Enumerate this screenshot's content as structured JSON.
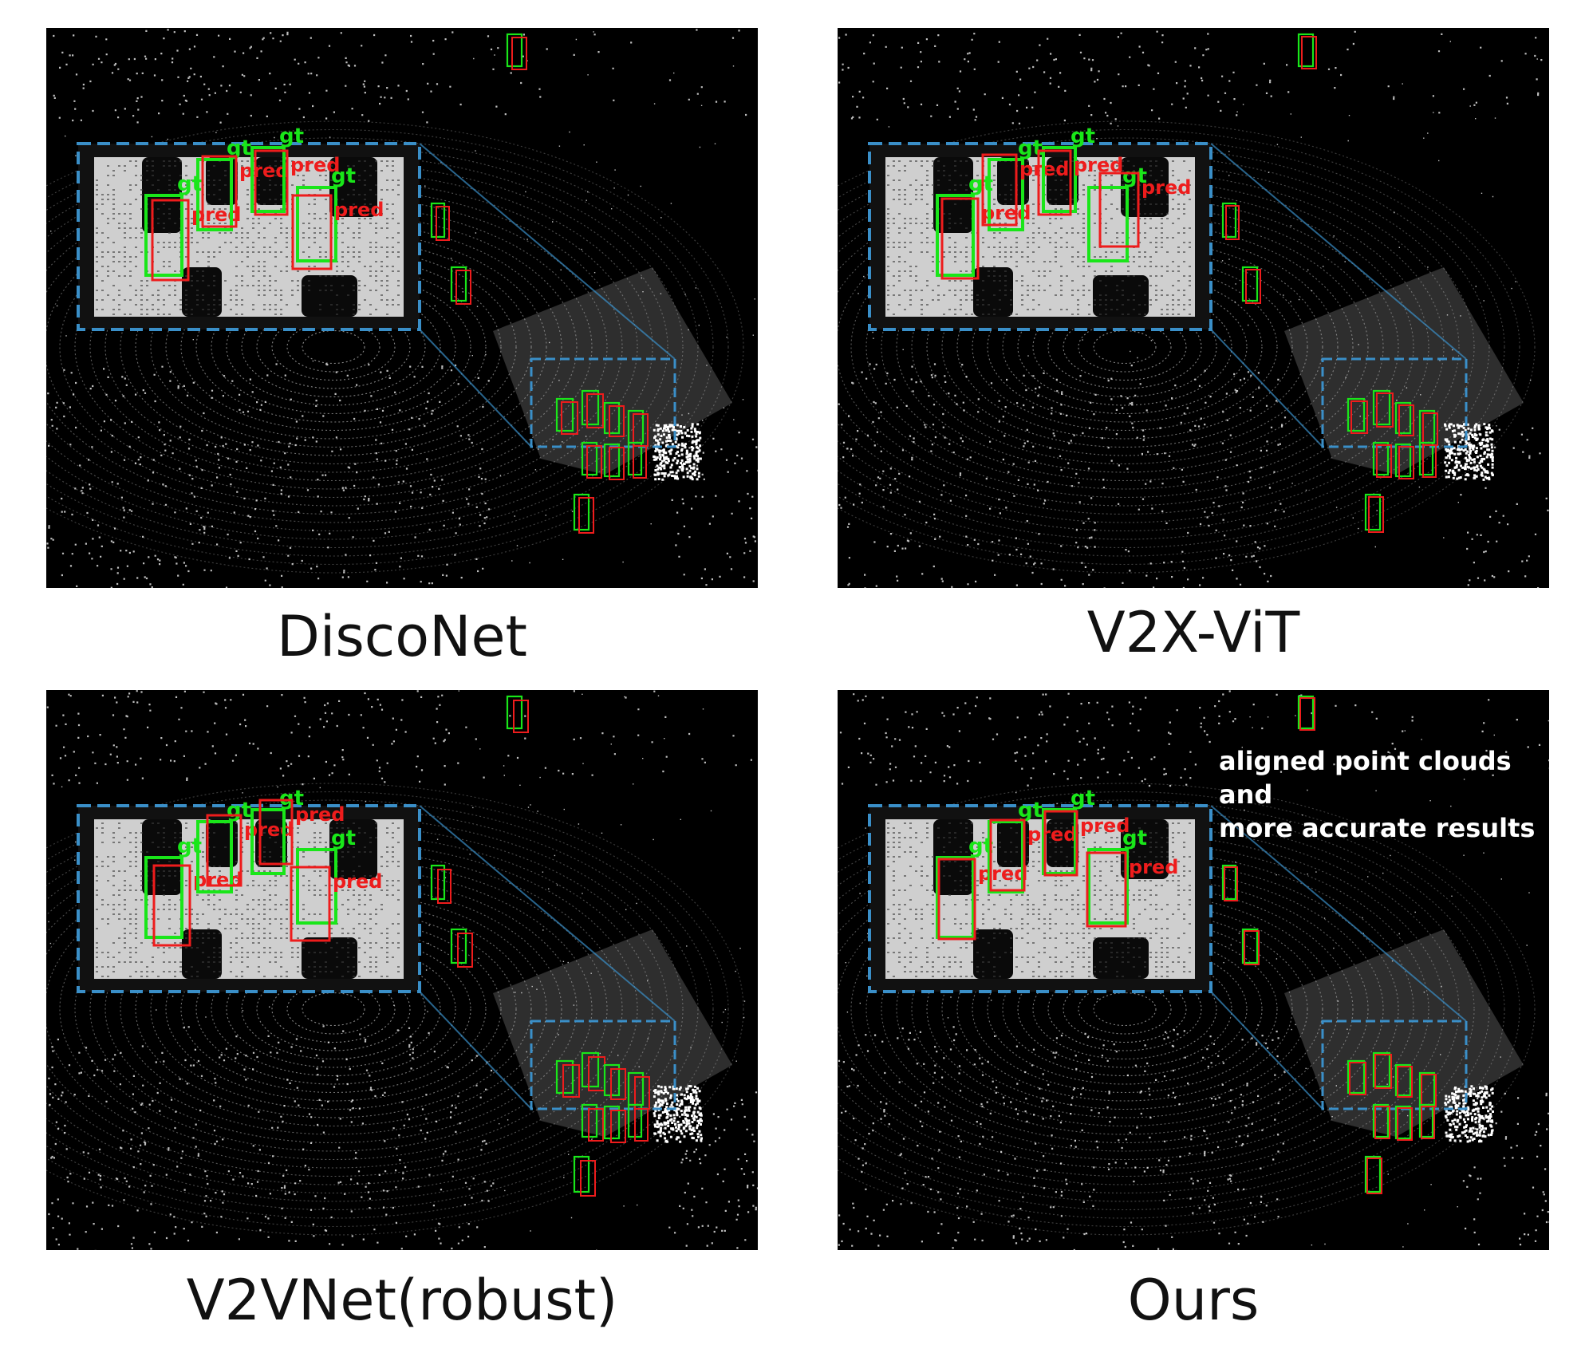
{
  "figure": {
    "panels": [
      {
        "id": "disconet",
        "caption": "DiscoNet",
        "note": ""
      },
      {
        "id": "v2x-vit",
        "caption": "V2X-ViT",
        "note": ""
      },
      {
        "id": "v2vnet",
        "caption": "V2VNet(robust)",
        "note": ""
      },
      {
        "id": "ours",
        "caption": "Ours",
        "note": "aligned point clouds and\nmore accurate results"
      }
    ],
    "box_labels": {
      "ground_truth": "gt",
      "prediction": "pred"
    },
    "colors": {
      "ground_truth": "#19e619",
      "prediction": "#ee1c1c",
      "zoom_frame": "#3a8fc8",
      "points": "#ffffff",
      "background": "#000000"
    }
  }
}
